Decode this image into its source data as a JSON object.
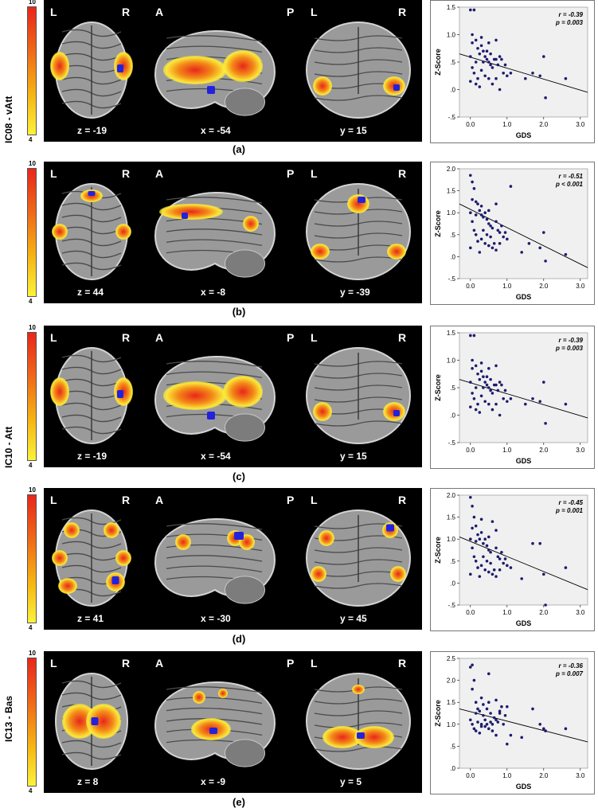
{
  "side_labels": [
    "IC08 - vAtt",
    "IC10 - Att",
    "IC13 - Bas"
  ],
  "colorbar": {
    "max": "10",
    "min": "4"
  },
  "panels": [
    {
      "caption": "(a)",
      "lbl1": [
        "L",
        "R"
      ],
      "lbl2": [
        "A",
        "P"
      ],
      "lbl3": [
        "L",
        "R"
      ],
      "coords": [
        "z = -19",
        "x = -54",
        "y = 15"
      ],
      "stats": {
        "r": "r = -0.39",
        "p": "p = 0.003"
      }
    },
    {
      "caption": "(b)",
      "lbl1": [
        "L",
        "R"
      ],
      "lbl2": [
        "A",
        "P"
      ],
      "lbl3": [
        "L",
        "R"
      ],
      "coords": [
        "z = 44",
        "x = -8",
        "y = -39"
      ],
      "stats": {
        "r": "r = -0.51",
        "p": "p < 0.001"
      }
    },
    {
      "caption": "(c)",
      "lbl1": [
        "L",
        "R"
      ],
      "lbl2": [
        "A",
        "P"
      ],
      "lbl3": [
        "L",
        "R"
      ],
      "coords": [
        "z = -19",
        "x = -54",
        "y = 15"
      ],
      "stats": {
        "r": "r = -0.39",
        "p": "p = 0.003"
      }
    },
    {
      "caption": "(d)",
      "lbl1": [
        "L",
        "R"
      ],
      "lbl2": [
        "A",
        "P"
      ],
      "lbl3": [
        "L",
        "R"
      ],
      "coords": [
        "z = 41",
        "x = -30",
        "y = 45"
      ],
      "stats": {
        "r": "r = -0.45",
        "p": "p = 0.001"
      }
    },
    {
      "caption": "(e)",
      "lbl1": [
        "L",
        "R"
      ],
      "lbl2": [
        "A",
        "P"
      ],
      "lbl3": [
        "L",
        "R"
      ],
      "coords": [
        "z = 8",
        "x = -9",
        "y = 5"
      ],
      "stats": {
        "r": "r = -0.36",
        "p": "p = 0.007"
      }
    }
  ],
  "chart_data": [
    {
      "type": "scatter",
      "xlabel": "GDS",
      "ylabel": "Z-Score",
      "xlim": [
        -0.3,
        3.2
      ],
      "ylim": [
        -0.5,
        1.5
      ],
      "xticks": [
        "0.0",
        "1.0",
        "2.0",
        "3.0"
      ],
      "yticks": [
        "-.5",
        ".0",
        ".5",
        "1.0",
        "1.5"
      ],
      "fit": [
        [
          -0.3,
          0.65
        ],
        [
          3.2,
          -0.05
        ]
      ],
      "points": [
        [
          0.0,
          1.45
        ],
        [
          0.05,
          1.0
        ],
        [
          0.1,
          1.45
        ],
        [
          0.05,
          0.85
        ],
        [
          0.15,
          0.9
        ],
        [
          0.2,
          0.75
        ],
        [
          0.25,
          0.65
        ],
        [
          0.3,
          0.8
        ],
        [
          0.35,
          0.7
        ],
        [
          0.4,
          0.6
        ],
        [
          0.45,
          0.55
        ],
        [
          0.5,
          0.5
        ],
        [
          0.55,
          0.45
        ],
        [
          0.6,
          0.4
        ],
        [
          0.7,
          0.55
        ],
        [
          0.8,
          0.6
        ],
        [
          0.9,
          0.3
        ],
        [
          0.0,
          0.6
        ],
        [
          0.05,
          0.4
        ],
        [
          0.1,
          0.3
        ],
        [
          0.15,
          0.5
        ],
        [
          0.2,
          0.2
        ],
        [
          0.3,
          0.35
        ],
        [
          0.4,
          0.25
        ],
        [
          0.5,
          0.2
        ],
        [
          0.6,
          0.1
        ],
        [
          0.7,
          0.2
        ],
        [
          0.8,
          0.0
        ],
        [
          1.0,
          0.25
        ],
        [
          1.1,
          0.3
        ],
        [
          0.25,
          0.05
        ],
        [
          0.35,
          0.5
        ],
        [
          0.45,
          0.7
        ],
        [
          0.55,
          0.65
        ],
        [
          0.65,
          0.55
        ],
        [
          0.75,
          0.45
        ],
        [
          0.85,
          0.55
        ],
        [
          0.95,
          0.45
        ],
        [
          0.15,
          0.1
        ],
        [
          0.3,
          0.95
        ],
        [
          0.5,
          0.85
        ],
        [
          0.7,
          0.9
        ],
        [
          1.7,
          0.3
        ],
        [
          1.9,
          0.25
        ],
        [
          2.0,
          0.6
        ],
        [
          2.05,
          -0.15
        ],
        [
          2.6,
          0.2
        ],
        [
          1.5,
          0.2
        ],
        [
          0.0,
          0.15
        ]
      ]
    },
    {
      "type": "scatter",
      "xlabel": "GDS",
      "ylabel": "Z-Score",
      "xlim": [
        -0.3,
        3.2
      ],
      "ylim": [
        -0.5,
        2.0
      ],
      "xticks": [
        "0.0",
        "1.0",
        "2.0",
        "3.0"
      ],
      "yticks": [
        "-.5",
        ".0",
        ".5",
        "1.0",
        "1.5",
        "2.0"
      ],
      "fit": [
        [
          -0.3,
          1.2
        ],
        [
          3.2,
          -0.25
        ]
      ],
      "points": [
        [
          0.0,
          1.85
        ],
        [
          0.05,
          1.7
        ],
        [
          0.1,
          1.55
        ],
        [
          0.05,
          1.3
        ],
        [
          0.15,
          1.25
        ],
        [
          0.2,
          1.2
        ],
        [
          0.25,
          1.05
        ],
        [
          0.3,
          0.95
        ],
        [
          0.35,
          0.9
        ],
        [
          0.4,
          1.0
        ],
        [
          0.45,
          0.85
        ],
        [
          0.5,
          0.75
        ],
        [
          0.55,
          0.7
        ],
        [
          0.6,
          0.65
        ],
        [
          0.7,
          0.8
        ],
        [
          0.8,
          0.55
        ],
        [
          0.9,
          0.45
        ],
        [
          0.0,
          1.0
        ],
        [
          0.05,
          0.8
        ],
        [
          0.1,
          0.6
        ],
        [
          0.15,
          0.5
        ],
        [
          0.2,
          0.35
        ],
        [
          0.3,
          0.4
        ],
        [
          0.4,
          0.3
        ],
        [
          0.5,
          0.25
        ],
        [
          0.6,
          0.2
        ],
        [
          0.7,
          0.15
        ],
        [
          0.8,
          0.3
        ],
        [
          1.0,
          0.4
        ],
        [
          1.1,
          1.6
        ],
        [
          0.25,
          0.1
        ],
        [
          0.35,
          0.6
        ],
        [
          0.45,
          0.5
        ],
        [
          0.55,
          0.45
        ],
        [
          0.65,
          0.3
        ],
        [
          0.75,
          0.6
        ],
        [
          0.85,
          0.7
        ],
        [
          0.95,
          0.55
        ],
        [
          0.15,
          0.95
        ],
        [
          0.3,
          1.15
        ],
        [
          0.5,
          1.05
        ],
        [
          0.7,
          1.2
        ],
        [
          1.6,
          0.3
        ],
        [
          1.9,
          0.2
        ],
        [
          2.0,
          0.55
        ],
        [
          2.05,
          -0.1
        ],
        [
          2.6,
          0.05
        ],
        [
          1.4,
          0.1
        ],
        [
          0.0,
          0.2
        ]
      ]
    },
    {
      "type": "scatter",
      "xlabel": "GDS",
      "ylabel": "Z-Score",
      "xlim": [
        -0.3,
        3.2
      ],
      "ylim": [
        -0.5,
        1.5
      ],
      "xticks": [
        "0.0",
        "1.0",
        "2.0",
        "3.0"
      ],
      "yticks": [
        "-.5",
        ".0",
        ".5",
        "1.0",
        "1.5"
      ],
      "fit": [
        [
          -0.3,
          0.65
        ],
        [
          3.2,
          -0.05
        ]
      ],
      "points": [
        [
          0.0,
          1.45
        ],
        [
          0.05,
          1.0
        ],
        [
          0.1,
          1.45
        ],
        [
          0.05,
          0.85
        ],
        [
          0.15,
          0.9
        ],
        [
          0.2,
          0.75
        ],
        [
          0.25,
          0.65
        ],
        [
          0.3,
          0.8
        ],
        [
          0.35,
          0.7
        ],
        [
          0.4,
          0.6
        ],
        [
          0.45,
          0.55
        ],
        [
          0.5,
          0.5
        ],
        [
          0.55,
          0.45
        ],
        [
          0.6,
          0.4
        ],
        [
          0.7,
          0.55
        ],
        [
          0.8,
          0.6
        ],
        [
          0.9,
          0.3
        ],
        [
          0.0,
          0.6
        ],
        [
          0.05,
          0.4
        ],
        [
          0.1,
          0.3
        ],
        [
          0.15,
          0.5
        ],
        [
          0.2,
          0.2
        ],
        [
          0.3,
          0.35
        ],
        [
          0.4,
          0.25
        ],
        [
          0.5,
          0.2
        ],
        [
          0.6,
          0.1
        ],
        [
          0.7,
          0.2
        ],
        [
          0.8,
          0.0
        ],
        [
          1.0,
          0.25
        ],
        [
          1.1,
          0.3
        ],
        [
          0.25,
          0.05
        ],
        [
          0.35,
          0.5
        ],
        [
          0.45,
          0.7
        ],
        [
          0.55,
          0.65
        ],
        [
          0.65,
          0.55
        ],
        [
          0.75,
          0.45
        ],
        [
          0.85,
          0.55
        ],
        [
          0.95,
          0.45
        ],
        [
          0.15,
          0.1
        ],
        [
          0.3,
          0.95
        ],
        [
          0.5,
          0.85
        ],
        [
          0.7,
          0.9
        ],
        [
          1.7,
          0.3
        ],
        [
          1.9,
          0.25
        ],
        [
          2.0,
          0.6
        ],
        [
          2.05,
          -0.15
        ],
        [
          2.6,
          0.2
        ],
        [
          1.5,
          0.2
        ],
        [
          0.0,
          0.15
        ]
      ]
    },
    {
      "type": "scatter",
      "xlabel": "GDS",
      "ylabel": "Z-Score",
      "xlim": [
        -0.3,
        3.2
      ],
      "ylim": [
        -0.5,
        2.0
      ],
      "xticks": [
        "0.0",
        "1.0",
        "2.0",
        "3.0"
      ],
      "yticks": [
        "-.5",
        ".0",
        ".5",
        "1.0",
        "1.5",
        "2.0"
      ],
      "fit": [
        [
          -0.3,
          1.05
        ],
        [
          3.2,
          -0.15
        ]
      ],
      "points": [
        [
          0.0,
          1.95
        ],
        [
          0.05,
          1.75
        ],
        [
          0.1,
          1.5
        ],
        [
          0.05,
          1.25
        ],
        [
          0.15,
          1.3
        ],
        [
          0.2,
          1.1
        ],
        [
          0.25,
          1.0
        ],
        [
          0.3,
          1.45
        ],
        [
          0.35,
          0.9
        ],
        [
          0.4,
          1.0
        ],
        [
          0.45,
          0.85
        ],
        [
          0.5,
          0.75
        ],
        [
          0.55,
          0.7
        ],
        [
          0.6,
          1.4
        ],
        [
          0.7,
          0.8
        ],
        [
          0.8,
          0.55
        ],
        [
          0.9,
          0.45
        ],
        [
          0.0,
          1.0
        ],
        [
          0.05,
          0.8
        ],
        [
          0.1,
          0.6
        ],
        [
          0.15,
          0.5
        ],
        [
          0.2,
          0.35
        ],
        [
          0.3,
          0.4
        ],
        [
          0.4,
          0.3
        ],
        [
          0.5,
          0.25
        ],
        [
          0.6,
          0.2
        ],
        [
          0.7,
          0.15
        ],
        [
          0.8,
          0.3
        ],
        [
          1.0,
          0.4
        ],
        [
          1.1,
          0.35
        ],
        [
          0.25,
          0.15
        ],
        [
          0.35,
          0.6
        ],
        [
          0.45,
          0.5
        ],
        [
          0.55,
          0.45
        ],
        [
          0.65,
          0.3
        ],
        [
          0.75,
          0.6
        ],
        [
          0.85,
          0.7
        ],
        [
          0.95,
          0.55
        ],
        [
          0.15,
          0.95
        ],
        [
          0.3,
          1.15
        ],
        [
          0.5,
          1.05
        ],
        [
          0.7,
          1.2
        ],
        [
          1.7,
          0.9
        ],
        [
          1.9,
          0.9
        ],
        [
          2.0,
          0.2
        ],
        [
          2.05,
          -0.5
        ],
        [
          2.6,
          0.35
        ],
        [
          1.4,
          0.1
        ],
        [
          0.0,
          0.2
        ]
      ]
    },
    {
      "type": "scatter",
      "xlabel": "GDS",
      "ylabel": "Z-Score",
      "xlim": [
        -0.3,
        3.2
      ],
      "ylim": [
        0.0,
        2.5
      ],
      "xticks": [
        "0.0",
        "1.0",
        "2.0",
        "3.0"
      ],
      "yticks": [
        ".0",
        ".5",
        "1.0",
        "1.5",
        "2.0",
        "2.5"
      ],
      "fit": [
        [
          -0.3,
          1.35
        ],
        [
          3.2,
          0.6
        ]
      ],
      "points": [
        [
          0.0,
          2.3
        ],
        [
          0.05,
          2.35
        ],
        [
          0.1,
          2.0
        ],
        [
          0.05,
          1.8
        ],
        [
          0.15,
          1.5
        ],
        [
          0.2,
          1.35
        ],
        [
          0.25,
          1.3
        ],
        [
          0.3,
          1.6
        ],
        [
          0.35,
          1.2
        ],
        [
          0.4,
          1.1
        ],
        [
          0.45,
          1.0
        ],
        [
          0.5,
          2.15
        ],
        [
          0.55,
          1.05
        ],
        [
          0.6,
          1.0
        ],
        [
          0.7,
          1.55
        ],
        [
          0.8,
          1.3
        ],
        [
          0.9,
          1.0
        ],
        [
          0.0,
          1.1
        ],
        [
          0.05,
          1.0
        ],
        [
          0.1,
          0.9
        ],
        [
          0.15,
          0.85
        ],
        [
          0.2,
          1.05
        ],
        [
          0.3,
          1.0
        ],
        [
          0.4,
          0.95
        ],
        [
          0.5,
          0.9
        ],
        [
          0.6,
          0.85
        ],
        [
          0.7,
          1.1
        ],
        [
          0.8,
          1.25
        ],
        [
          1.0,
          1.4
        ],
        [
          1.1,
          0.75
        ],
        [
          0.25,
          0.8
        ],
        [
          0.35,
          1.45
        ],
        [
          0.45,
          1.35
        ],
        [
          0.55,
          1.25
        ],
        [
          0.65,
          1.15
        ],
        [
          0.75,
          1.05
        ],
        [
          0.85,
          1.4
        ],
        [
          0.95,
          1.2
        ],
        [
          0.15,
          1.25
        ],
        [
          0.3,
          0.95
        ],
        [
          0.5,
          1.5
        ],
        [
          0.7,
          0.75
        ],
        [
          1.7,
          1.35
        ],
        [
          1.9,
          1.0
        ],
        [
          2.0,
          0.9
        ],
        [
          2.05,
          0.85
        ],
        [
          2.6,
          0.9
        ],
        [
          1.4,
          0.7
        ],
        [
          1.0,
          0.55
        ]
      ]
    }
  ]
}
